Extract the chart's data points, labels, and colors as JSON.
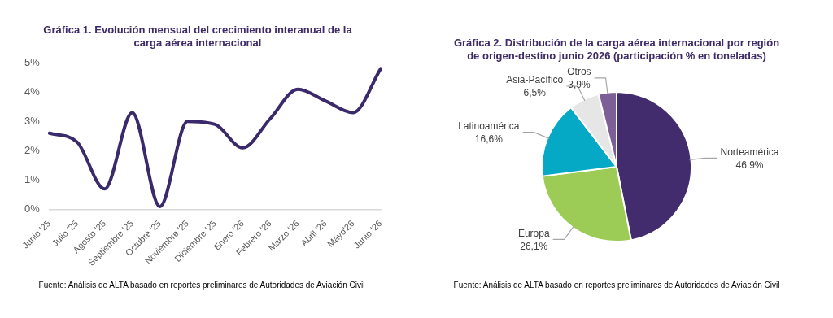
{
  "chart_data": [
    {
      "type": "line",
      "title": "Gráfica 1. Evolución mensual del crecimiento interanual de la carga aérea internacional",
      "categories": [
        "Junio '25",
        "Julio '25",
        "Agosto '25",
        "Septiembre '25",
        "Octubre '25",
        "Noviembre '25",
        "Diciembre '25",
        "Enero '26",
        "Febrero '26",
        "Marzo '26",
        "Abril '26",
        "Mayo'26",
        "Junio '26"
      ],
      "series": [
        {
          "color": "#3b2a6b",
          "values": [
            2.6,
            2.3,
            0.7,
            3.3,
            0.1,
            3.0,
            2.9,
            2.1,
            3.1,
            4.1,
            3.7,
            3.3,
            4.8
          ]
        }
      ],
      "ylim": [
        0,
        5
      ],
      "yticks": [
        {
          "value": 0,
          "label": "0%"
        },
        {
          "value": 1,
          "label": "1%"
        },
        {
          "value": 2,
          "label": "2%"
        },
        {
          "value": 3,
          "label": "3%"
        },
        {
          "value": 4,
          "label": "4%"
        },
        {
          "value": 5,
          "label": "5%"
        }
      ],
      "marker": "none",
      "annotations": [
        "Fuente: Análisis de ALTA basado en reportes preliminares de Autoridades de Aviación Civil"
      ]
    },
    {
      "type": "pie",
      "title": "Gráfica 2. Distribución de la carga aérea internacional por región de origen-destino junio 2026 (participación % en toneladas)",
      "categories": [
        "Norteamérica",
        "Europa",
        "Latinoamérica",
        "Asia-Pacífico",
        "Otros"
      ],
      "values": [
        46.9,
        26.1,
        16.6,
        6.5,
        3.9
      ],
      "colors": [
        "#432c6e",
        "#9ccc55",
        "#05a9c6",
        "#e6e6e6",
        "#7b5f96"
      ],
      "value_labels": [
        "46,9%",
        "26,1%",
        "16,6%",
        "6,5%",
        "3,9%"
      ],
      "annotations": [
        "Fuente: Análisis de ALTA basado en reportes preliminares de Autoridades de Aviación Civil"
      ]
    }
  ]
}
